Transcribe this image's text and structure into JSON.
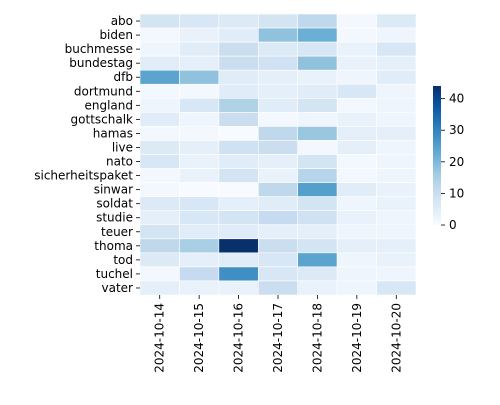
{
  "chart_data": {
    "type": "heatmap",
    "title": "",
    "xlabel": "",
    "ylabel": "",
    "x": [
      "2024-10-14",
      "2024-10-15",
      "2024-10-16",
      "2024-10-17",
      "2024-10-18",
      "2024-10-19",
      "2024-10-20"
    ],
    "y": [
      "abo",
      "biden",
      "buchmesse",
      "bundestag",
      "dfb",
      "dortmund",
      "england",
      "gottschalk",
      "hamas",
      "live",
      "nato",
      "sicherheitspaket",
      "sinwar",
      "soldat",
      "studie",
      "teuer",
      "thoma",
      "tod",
      "tuchel",
      "vater"
    ],
    "values": [
      [
        8,
        7,
        6,
        8,
        12,
        1,
        6
      ],
      [
        1,
        3,
        5,
        18,
        22,
        1,
        2
      ],
      [
        2,
        5,
        10,
        6,
        7,
        3,
        7
      ],
      [
        5,
        4,
        10,
        9,
        18,
        3,
        4
      ],
      [
        24,
        18,
        5,
        4,
        3,
        2,
        5
      ],
      [
        1,
        1,
        5,
        4,
        5,
        7,
        2
      ],
      [
        2,
        7,
        14,
        5,
        8,
        1,
        2
      ],
      [
        5,
        2,
        10,
        1,
        2,
        3,
        2
      ],
      [
        1,
        1,
        0,
        12,
        17,
        4,
        4
      ],
      [
        6,
        4,
        9,
        10,
        1,
        4,
        2
      ],
      [
        7,
        3,
        5,
        4,
        8,
        1,
        2
      ],
      [
        1,
        3,
        8,
        3,
        13,
        1,
        2
      ],
      [
        1,
        0,
        0,
        12,
        25,
        5,
        3
      ],
      [
        6,
        7,
        4,
        5,
        8,
        2,
        3
      ],
      [
        4,
        7,
        8,
        11,
        9,
        3,
        2
      ],
      [
        8,
        5,
        5,
        4,
        4,
        2,
        2
      ],
      [
        12,
        15,
        44,
        10,
        8,
        4,
        4
      ],
      [
        6,
        4,
        5,
        7,
        24,
        2,
        3
      ],
      [
        1,
        11,
        28,
        7,
        6,
        2,
        2
      ],
      [
        4,
        3,
        3,
        10,
        3,
        2,
        7
      ]
    ],
    "colormap": "Blues",
    "vmin": 0,
    "vmax": 44,
    "colorbar_ticks": [
      0,
      10,
      20,
      30,
      40
    ],
    "cell_border_color": "#ffffff",
    "grid": false,
    "legend": "colorbar-right"
  }
}
